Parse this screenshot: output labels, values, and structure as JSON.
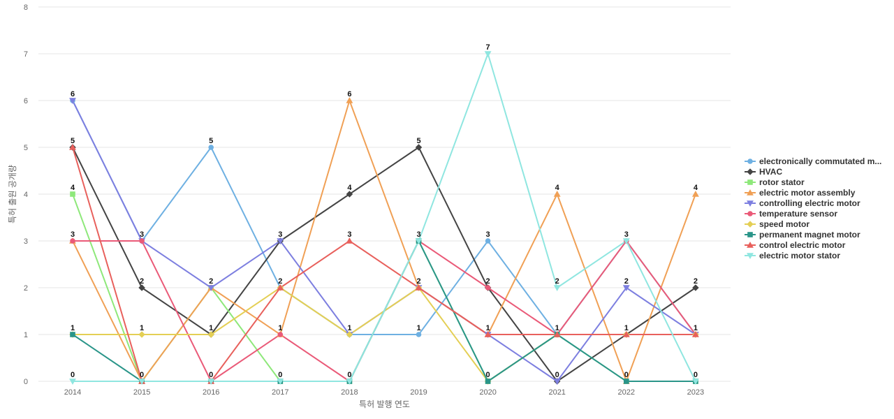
{
  "chart_data": {
    "type": "line",
    "title": "",
    "xlabel": "특허 발행 연도",
    "ylabel": "특허 출원 공개량",
    "ylim": [
      0,
      8
    ],
    "yticks": [
      0,
      1,
      2,
      3,
      4,
      5,
      6,
      7,
      8
    ],
    "grid": true,
    "legend_position": "right",
    "x": [
      "2014",
      "2015",
      "2016",
      "2017",
      "2018",
      "2019",
      "2020",
      "2021",
      "2022",
      "2023"
    ],
    "series": [
      {
        "name": "electronically commutated m...",
        "color": "#6eb0e2",
        "marker": "circle",
        "values": [
          6,
          3,
          5,
          2,
          1,
          1,
          3,
          1,
          3,
          1
        ]
      },
      {
        "name": "HVAC",
        "color": "#444444",
        "marker": "diamond",
        "values": [
          5,
          2,
          1,
          3,
          4,
          5,
          2,
          0,
          1,
          2
        ]
      },
      {
        "name": "rotor stator",
        "color": "#8ee87a",
        "marker": "square",
        "values": [
          4,
          0,
          2,
          0,
          0,
          3,
          0,
          1,
          0,
          0
        ]
      },
      {
        "name": "electric motor assembly",
        "color": "#f0a055",
        "marker": "triangle",
        "values": [
          3,
          0,
          2,
          1,
          6,
          2,
          1,
          4,
          0,
          4
        ]
      },
      {
        "name": "controlling electric motor",
        "color": "#7d7fe0",
        "marker": "triangle-down",
        "values": [
          6,
          3,
          2,
          3,
          1,
          2,
          1,
          0,
          2,
          1
        ]
      },
      {
        "name": "temperature sensor",
        "color": "#ea5a78",
        "marker": "circle",
        "values": [
          3,
          3,
          0,
          1,
          0,
          3,
          2,
          1,
          3,
          1
        ]
      },
      {
        "name": "speed motor",
        "color": "#e4cf55",
        "marker": "diamond",
        "values": [
          1,
          1,
          1,
          2,
          1,
          2,
          0,
          1,
          1,
          1
        ]
      },
      {
        "name": "permanent magnet motor",
        "color": "#2a9589",
        "marker": "square",
        "values": [
          1,
          0,
          0,
          0,
          0,
          3,
          0,
          1,
          0,
          0
        ]
      },
      {
        "name": "control electric motor",
        "color": "#e8605c",
        "marker": "triangle",
        "values": [
          5,
          0,
          0,
          2,
          3,
          2,
          1,
          1,
          1,
          1
        ]
      },
      {
        "name": "electric motor stator",
        "color": "#8fe6e0",
        "marker": "triangle-down",
        "values": [
          0,
          0,
          0,
          0,
          0,
          3,
          7,
          2,
          3,
          0
        ]
      }
    ],
    "data_labels": {
      "2014": [
        6,
        5,
        4,
        3,
        1,
        0
      ],
      "2015": [
        3,
        2,
        1,
        0
      ],
      "2016": [
        5,
        2,
        1,
        0
      ],
      "2017": [
        3,
        2,
        1,
        0
      ],
      "2018": [
        6,
        4,
        3,
        1,
        0
      ],
      "2019": [
        5,
        3,
        2,
        1
      ],
      "2020": [
        7,
        3,
        2,
        1,
        0
      ],
      "2021": [
        4,
        2,
        1,
        0
      ],
      "2022": [
        3,
        2,
        1,
        0
      ],
      "2023": [
        4,
        2,
        1,
        0
      ]
    }
  }
}
